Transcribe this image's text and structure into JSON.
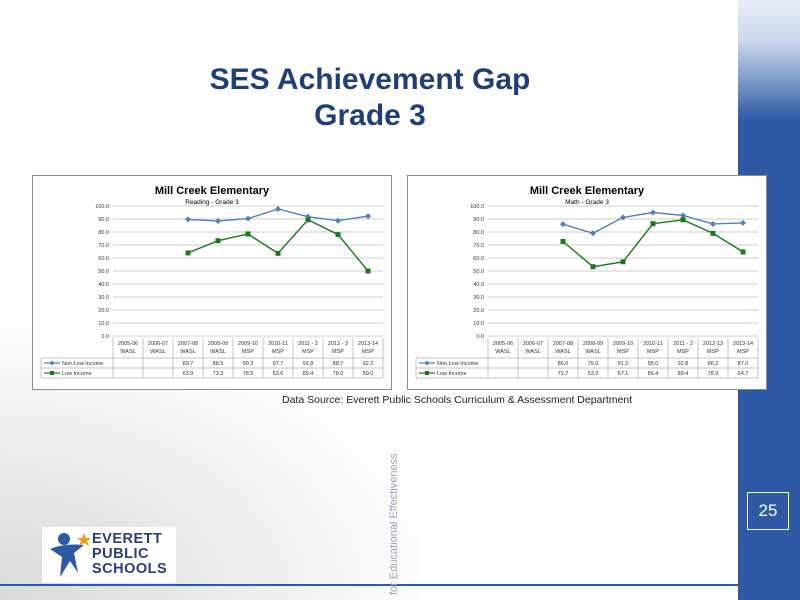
{
  "slide": {
    "title_line1": "SES Achievement  Gap",
    "title_line2": "Grade 3",
    "page_number": "25",
    "source": "Data Source: Everett Public Schools Curriculum  & Assessment Department",
    "vertical_text": "for Educational  Effectiveness",
    "logo_lines": [
      "EVERETT",
      "PUBLIC",
      "SCHOOLS"
    ],
    "colors": {
      "accent_blue": "#2e5aa5",
      "title_blue": "#1f3f7a",
      "non_low_income": "#4f81bd",
      "low_income": "#1a7a1a"
    }
  },
  "chart_data": [
    {
      "type": "line",
      "title": "Mill Creek Elementary",
      "subtitle": "Reading - Grade 3",
      "ylim": [
        0,
        100
      ],
      "yticks": [
        "0.0",
        "10.0",
        "20.0",
        "30.0",
        "40.0",
        "50.0",
        "60.0",
        "70.0",
        "80.0",
        "90.0",
        "100.0"
      ],
      "categories": [
        [
          "2005-06",
          "WASL"
        ],
        [
          "2006-07",
          "WASL"
        ],
        [
          "2007-08",
          "WASL"
        ],
        [
          "2008-09",
          "WASL"
        ],
        [
          "2009-10",
          "MSP"
        ],
        [
          "2010-11",
          "MSP"
        ],
        [
          "2011 - 2",
          "MSP"
        ],
        [
          "2012 - 3",
          "MSP"
        ],
        [
          "2013-14",
          "MSP"
        ]
      ],
      "series": [
        {
          "name": "Non Low Income",
          "values": [
            null,
            null,
            89.7,
            88.5,
            90.3,
            97.7,
            91.8,
            88.7,
            92.2
          ],
          "labels": [
            "",
            "",
            "89.7",
            "88.5",
            "90.3",
            "97.7",
            "91.8",
            "88.7",
            "92.2"
          ]
        },
        {
          "name": "Low Income",
          "values": [
            null,
            null,
            63.9,
            73.3,
            78.5,
            63.6,
            89.4,
            78.0,
            50.0
          ],
          "labels": [
            "",
            "",
            "63.9",
            "73.3",
            "78.5",
            "63.6",
            "89.4",
            "78.0",
            "50.0"
          ]
        }
      ]
    },
    {
      "type": "line",
      "title": "Mill Creek Elementary",
      "subtitle": "Math - Grade 3",
      "ylim": [
        0,
        100
      ],
      "yticks": [
        "0.0",
        "10.0",
        "20.0",
        "30.0",
        "40.0",
        "50.0",
        "60.0",
        "70.0",
        "80.0",
        "90.0",
        "100.0"
      ],
      "categories": [
        [
          "2005-06",
          "WASL"
        ],
        [
          "2006-07",
          "WASL"
        ],
        [
          "2007-08",
          "WASL"
        ],
        [
          "2008-09",
          "WASL"
        ],
        [
          "2009-10",
          "MSP"
        ],
        [
          "2010-11",
          "MSP"
        ],
        [
          "2011 - 2",
          "MSP"
        ],
        [
          "2012-13",
          "MSP"
        ],
        [
          "2013-14",
          "MSP"
        ]
      ],
      "series": [
        {
          "name": "Non Low Income",
          "values": [
            null,
            null,
            86.0,
            79.0,
            91.2,
            95.0,
            92.8,
            86.2,
            87.0
          ],
          "labels": [
            "",
            "",
            "86.0",
            "79.0",
            "91.2",
            "95.0",
            "92.8",
            "86.2",
            "87.0"
          ]
        },
        {
          "name": "Low Income",
          "values": [
            null,
            null,
            72.7,
            53.3,
            57.1,
            86.4,
            89.4,
            78.9,
            64.7
          ],
          "labels": [
            "",
            "",
            "72.7",
            "53.3",
            "57.1",
            "86.4",
            "89.4",
            "78.9",
            "64.7"
          ]
        }
      ]
    }
  ]
}
